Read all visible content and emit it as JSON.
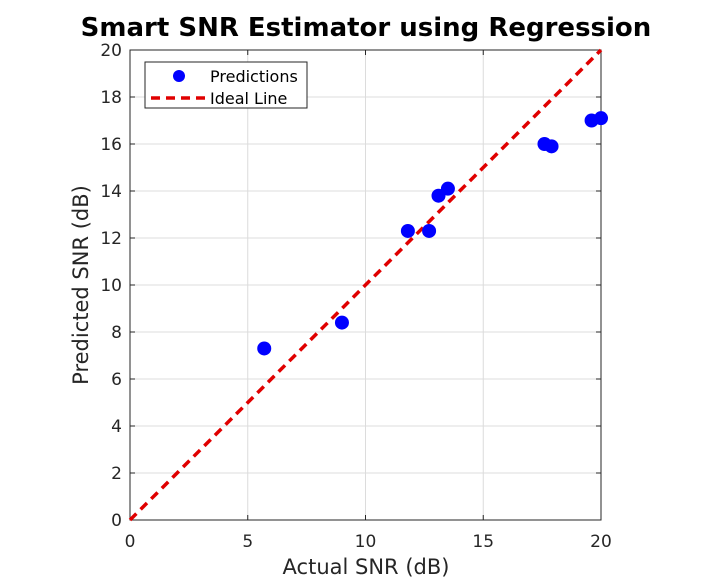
{
  "chart_data": {
    "type": "scatter",
    "title": "Smart SNR Estimator using Regression",
    "xlabel": "Actual SNR (dB)",
    "ylabel": "Predicted SNR (dB)",
    "xlim": [
      0,
      20
    ],
    "ylim": [
      0,
      20
    ],
    "xticks": [
      0,
      5,
      10,
      15,
      20
    ],
    "yticks": [
      0,
      2,
      4,
      6,
      8,
      10,
      12,
      14,
      16,
      18,
      20
    ],
    "grid": true,
    "legend_position": "top-left",
    "series": [
      {
        "name": "Predictions",
        "kind": "scatter",
        "color": "#0000ff",
        "x": [
          5.7,
          9.0,
          11.8,
          12.7,
          13.1,
          13.5,
          17.6,
          17.9,
          19.6,
          20.0
        ],
        "y": [
          7.3,
          8.4,
          12.3,
          12.3,
          13.8,
          14.1,
          16.0,
          15.9,
          17.0,
          17.1
        ]
      },
      {
        "name": "Ideal Line",
        "kind": "line",
        "style": "dashed",
        "color": "#e00000",
        "x": [
          0,
          20
        ],
        "y": [
          0,
          20
        ]
      }
    ]
  }
}
